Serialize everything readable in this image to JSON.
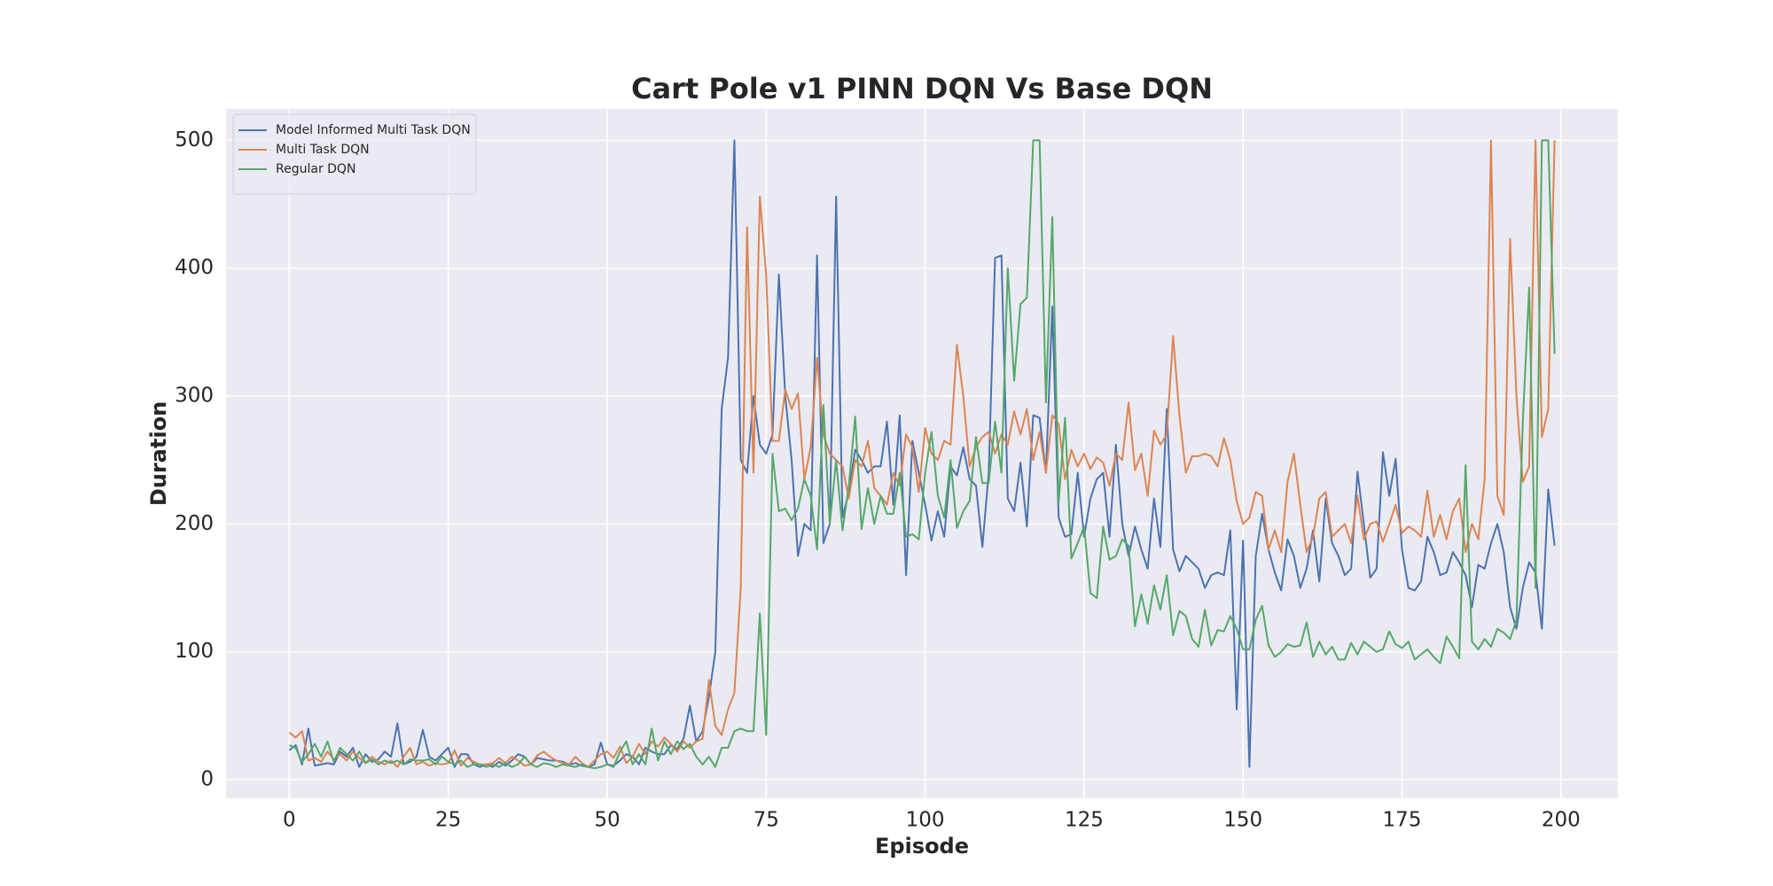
{
  "chart_data": {
    "type": "line",
    "title": "Cart Pole v1 PINN DQN Vs Base DQN",
    "x_label": "Episode",
    "y_label": "Duration",
    "x": [
      0,
      1,
      2,
      3,
      4,
      5,
      6,
      7,
      8,
      9,
      10,
      11,
      12,
      13,
      14,
      15,
      16,
      17,
      18,
      19,
      20,
      21,
      22,
      23,
      24,
      25,
      26,
      27,
      28,
      29,
      30,
      31,
      32,
      33,
      34,
      35,
      36,
      37,
      38,
      39,
      40,
      41,
      42,
      43,
      44,
      45,
      46,
      47,
      48,
      49,
      50,
      51,
      52,
      53,
      54,
      55,
      56,
      57,
      58,
      59,
      60,
      61,
      62,
      63,
      64,
      65,
      66,
      67,
      68,
      69,
      70,
      71,
      72,
      73,
      74,
      75,
      76,
      77,
      78,
      79,
      80,
      81,
      82,
      83,
      84,
      85,
      86,
      87,
      88,
      89,
      90,
      91,
      92,
      93,
      94,
      95,
      96,
      97,
      98,
      99,
      100,
      101,
      102,
      103,
      104,
      105,
      106,
      107,
      108,
      109,
      110,
      111,
      112,
      113,
      114,
      115,
      116,
      117,
      118,
      119,
      120,
      121,
      122,
      123,
      124,
      125,
      126,
      127,
      128,
      129,
      130,
      131,
      132,
      133,
      134,
      135,
      136,
      137,
      138,
      139,
      140,
      141,
      142,
      143,
      144,
      145,
      146,
      147,
      148,
      149,
      150,
      151,
      152,
      153,
      154,
      155,
      156,
      157,
      158,
      159,
      160,
      161,
      162,
      163,
      164,
      165,
      166,
      167,
      168,
      169,
      170,
      171,
      172,
      173,
      174,
      175,
      176,
      177,
      178,
      179,
      180,
      181,
      182,
      183,
      184,
      185,
      186,
      187,
      188,
      189,
      190,
      191,
      192,
      193,
      194,
      195,
      196,
      197,
      198,
      199
    ],
    "series": [
      {
        "name": "Model Informed Multi Task DQN",
        "color": "#4c72b0",
        "values": [
          23,
          27,
          12,
          40,
          11,
          12,
          13,
          12,
          22,
          18,
          25,
          10,
          20,
          14,
          16,
          22,
          18,
          44,
          12,
          14,
          18,
          39,
          18,
          15,
          20,
          25,
          10,
          20,
          20,
          12,
          10,
          12,
          10,
          14,
          11,
          15,
          20,
          18,
          12,
          17,
          16,
          15,
          15,
          14,
          12,
          13,
          11,
          10,
          12,
          29,
          12,
          11,
          15,
          20,
          18,
          12,
          25,
          22,
          20,
          20,
          27,
          24,
          32,
          58,
          30,
          38,
          65,
          100,
          290,
          330,
          500,
          250,
          240,
          300,
          262,
          255,
          270,
          395,
          300,
          250,
          175,
          200,
          195,
          410,
          185,
          200,
          456,
          205,
          225,
          258,
          250,
          240,
          245,
          245,
          280,
          215,
          285,
          160,
          265,
          240,
          215,
          187,
          210,
          190,
          245,
          238,
          260,
          235,
          230,
          182,
          240,
          408,
          410,
          220,
          210,
          248,
          198,
          285,
          283,
          240,
          370,
          205,
          190,
          192,
          240,
          190,
          220,
          235,
          240,
          190,
          262,
          200,
          175,
          198,
          180,
          165,
          220,
          182,
          290,
          180,
          163,
          175,
          170,
          165,
          150,
          160,
          162,
          160,
          195,
          55,
          187,
          10,
          175,
          208,
          180,
          162,
          148,
          188,
          175,
          150,
          165,
          195,
          155,
          220,
          185,
          175,
          160,
          165,
          241,
          200,
          158,
          165,
          256,
          222,
          251,
          180,
          150,
          148,
          155,
          190,
          178,
          160,
          162,
          178,
          170,
          160,
          135,
          168,
          165,
          185,
          200,
          178,
          135,
          118,
          150,
          170,
          162,
          118,
          227,
          183
        ]
      },
      {
        "name": "Multi Task DQN",
        "color": "#dd8452",
        "values": [
          37,
          33,
          38,
          15,
          17,
          14,
          22,
          16,
          20,
          15,
          22,
          17,
          13,
          18,
          14,
          12,
          15,
          10,
          18,
          25,
          12,
          14,
          11,
          13,
          12,
          13,
          23,
          11,
          17,
          14,
          12,
          12,
          13,
          17,
          13,
          18,
          15,
          11,
          12,
          19,
          22,
          18,
          15,
          13,
          12,
          18,
          13,
          10,
          15,
          20,
          22,
          17,
          26,
          13,
          18,
          28,
          20,
          30,
          26,
          33,
          28,
          22,
          30,
          25,
          30,
          32,
          78,
          42,
          35,
          55,
          68,
          150,
          432,
          240,
          456,
          395,
          265,
          265,
          305,
          290,
          302,
          235,
          260,
          330,
          270,
          255,
          250,
          245,
          220,
          250,
          245,
          265,
          228,
          222,
          215,
          240,
          230,
          270,
          260,
          225,
          275,
          255,
          250,
          265,
          262,
          340,
          300,
          245,
          260,
          268,
          272,
          255,
          270,
          262,
          288,
          270,
          290,
          250,
          272,
          240,
          285,
          278,
          235,
          258,
          245,
          255,
          243,
          252,
          248,
          230,
          255,
          250,
          295,
          242,
          255,
          222,
          273,
          262,
          270,
          347,
          285,
          240,
          253,
          253,
          255,
          253,
          245,
          267,
          250,
          218,
          200,
          205,
          225,
          222,
          180,
          195,
          178,
          233,
          255,
          215,
          178,
          190,
          220,
          225,
          190,
          195,
          200,
          185,
          222,
          188,
          200,
          202,
          186,
          200,
          215,
          193,
          198,
          195,
          190,
          226,
          190,
          207,
          188,
          210,
          220,
          178,
          200,
          188,
          235,
          500,
          222,
          207,
          423,
          300,
          233,
          245,
          500,
          268,
          290,
          500
        ]
      },
      {
        "name": "Regular DQN",
        "color": "#55a868",
        "values": [
          27,
          25,
          14,
          20,
          28,
          18,
          30,
          14,
          25,
          20,
          15,
          22,
          13,
          16,
          12,
          15,
          13,
          15,
          12,
          16,
          15,
          15,
          16,
          12,
          18,
          14,
          12,
          15,
          10,
          12,
          12,
          10,
          12,
          10,
          13,
          10,
          12,
          18,
          12,
          10,
          13,
          12,
          10,
          12,
          11,
          10,
          12,
          10,
          9,
          10,
          12,
          10,
          22,
          30,
          12,
          20,
          12,
          40,
          15,
          30,
          20,
          30,
          24,
          28,
          18,
          12,
          18,
          10,
          25,
          25,
          38,
          40,
          38,
          38,
          130,
          35,
          255,
          210,
          212,
          203,
          212,
          235,
          222,
          180,
          293,
          200,
          250,
          195,
          230,
          284,
          196,
          228,
          200,
          222,
          208,
          208,
          240,
          190,
          192,
          188,
          240,
          272,
          222,
          205,
          250,
          197,
          210,
          218,
          268,
          232,
          232,
          280,
          240,
          400,
          312,
          372,
          377,
          500,
          500,
          295,
          440,
          217,
          283,
          173,
          185,
          198,
          146,
          142,
          198,
          172,
          175,
          188,
          183,
          120,
          145,
          122,
          152,
          133,
          160,
          113,
          132,
          128,
          110,
          104,
          133,
          105,
          117,
          116,
          128,
          118,
          102,
          102,
          125,
          136,
          105,
          96,
          100,
          106,
          104,
          105,
          123,
          96,
          108,
          98,
          104,
          94,
          94,
          107,
          98,
          108,
          104,
          100,
          102,
          116,
          106,
          103,
          108,
          94,
          98,
          102,
          96,
          91,
          112,
          104,
          95,
          246,
          108,
          102,
          110,
          104,
          118,
          115,
          110,
          125,
          280,
          385,
          150,
          500,
          500,
          333
        ]
      }
    ],
    "xlim": [
      -9.95,
      208.95
    ],
    "ylim": [
      -14.5,
      524.5
    ],
    "xticks": [
      0,
      25,
      50,
      75,
      100,
      125,
      150,
      175,
      200
    ],
    "yticks": [
      0,
      100,
      200,
      300,
      400,
      500
    ],
    "grid": true,
    "legend": "upper left"
  }
}
